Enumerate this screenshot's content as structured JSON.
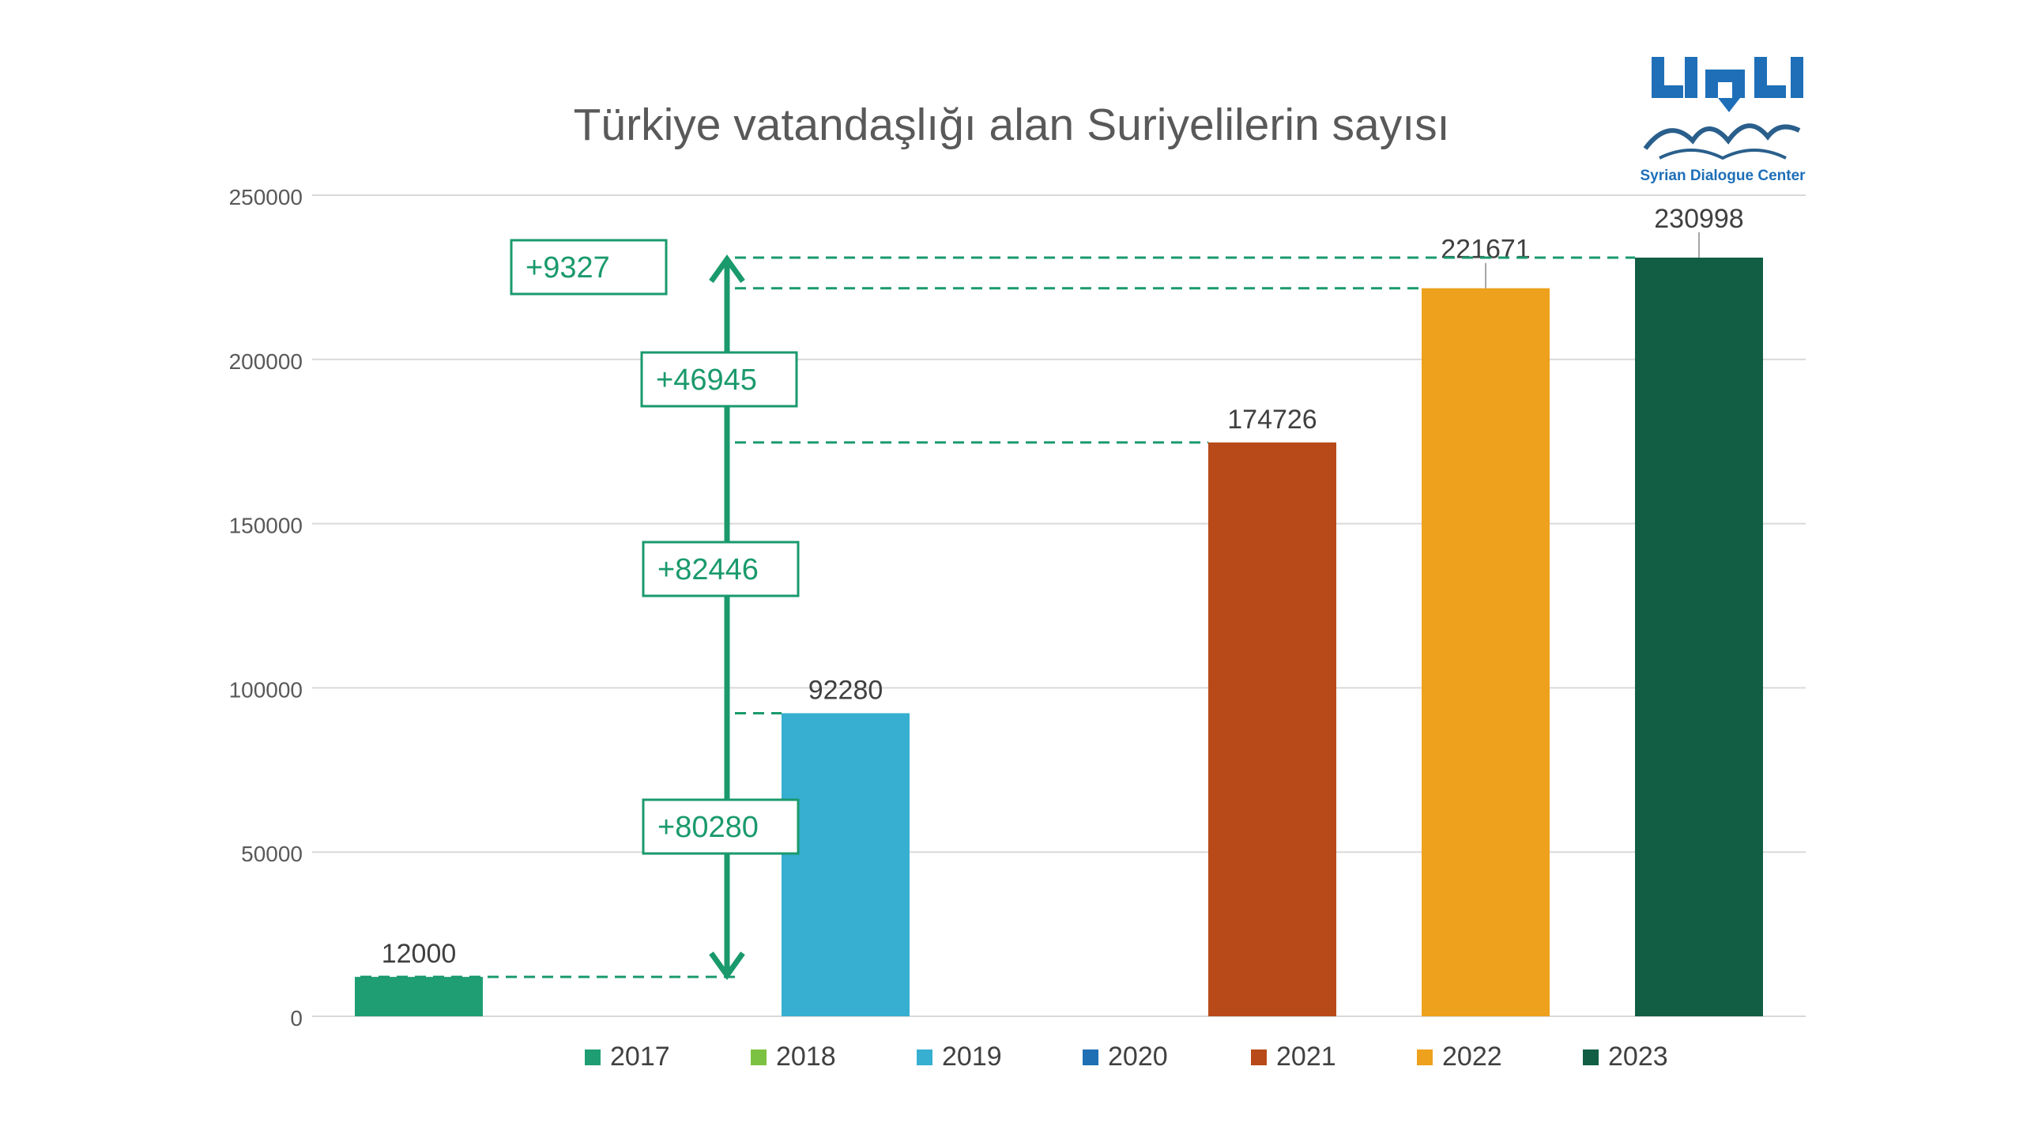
{
  "header": {
    "title": "Türkiye vatandaşlığı alan Suriyelilerin sayısı",
    "brand_text": "Syrian Dialogue Center"
  },
  "chart_data": {
    "type": "bar",
    "title": "Türkiye vatandaşlığı alan Suriyelilerin sayısı",
    "xlabel": "",
    "ylabel": "",
    "ylim": [
      0,
      250000
    ],
    "yticks": [
      0,
      50000,
      100000,
      150000,
      200000,
      250000
    ],
    "grid": true,
    "legend_placement": "bottom",
    "categories": [
      "2017",
      "2018",
      "2019",
      "2020",
      "2021",
      "2022",
      "2023"
    ],
    "series": [
      {
        "name": "2017",
        "value": 12000,
        "color": "#1f9e74",
        "label": "12000"
      },
      {
        "name": "2018",
        "value": null,
        "color": "#7cc242",
        "label": ""
      },
      {
        "name": "2019",
        "value": 92280,
        "color": "#36afd0",
        "label": "92280"
      },
      {
        "name": "2020",
        "value": null,
        "color": "#1f6fb5",
        "label": ""
      },
      {
        "name": "2021",
        "value": 174726,
        "color": "#b84a1a",
        "label": "174726"
      },
      {
        "name": "2022",
        "value": 221671,
        "color": "#eea11c",
        "label": "221671"
      },
      {
        "name": "2023",
        "value": 230998,
        "color": "#115e45",
        "label": "230998"
      }
    ],
    "annotations": [
      {
        "text": "+9327",
        "from": 221671,
        "to": 230998
      },
      {
        "text": "+46945",
        "from": 174726,
        "to": 221671
      },
      {
        "text": "+82446",
        "from": 92280,
        "to": 174726
      },
      {
        "text": "+80280",
        "from": 12000,
        "to": 92280
      }
    ],
    "annotation_color": "#1a9a6c"
  }
}
